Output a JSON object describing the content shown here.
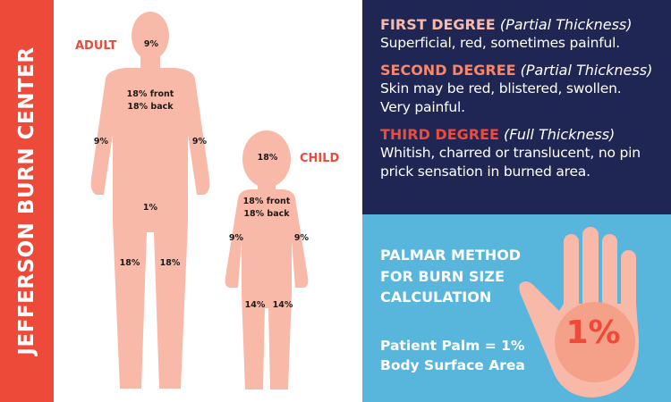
{
  "sidebar": {
    "title": "JEFFERSON BURN CENTER"
  },
  "figures": {
    "adult": {
      "label": "ADULT",
      "head": "9%",
      "torso_front": "18% front",
      "torso_back": "18% back",
      "left_arm": "9%",
      "right_arm": "9%",
      "genital": "1%",
      "left_leg": "18%",
      "right_leg": "18%"
    },
    "child": {
      "label": "CHILD",
      "head": "18%",
      "torso_front": "18% front",
      "torso_back": "18% back",
      "left_arm": "9%",
      "right_arm": "9%",
      "left_leg": "14%",
      "right_leg": "14%"
    }
  },
  "degrees": [
    {
      "title": "FIRST DEGREE",
      "subtitle": "(Partial Thickness)",
      "description": "Superficial, red, sometimes painful.",
      "color": "#f9b9a8"
    },
    {
      "title": "SECOND DEGREE",
      "subtitle": "(Partial Thickness)",
      "description": "Skin may be red, blistered, swollen. Very painful.",
      "color": "#f6876a"
    },
    {
      "title": "THIRD DEGREE",
      "subtitle": "(Full Thickness)",
      "description": "Whitish, charred or translucent, no pin prick sensation in burned area.",
      "color": "#ef4a3a"
    }
  ],
  "palmar": {
    "title": "PALMAR METHOD FOR BURN SIZE CALCULATION",
    "note_line1": "Patient Palm = 1%",
    "note_line2": "Body Surface Area",
    "palm_value": "1%"
  },
  "colors": {
    "red": "#ee4a3a",
    "navy": "#1f2654",
    "blue": "#58b6dd",
    "skin": "#f9b9a8",
    "palm_circle": "#f5a088"
  }
}
